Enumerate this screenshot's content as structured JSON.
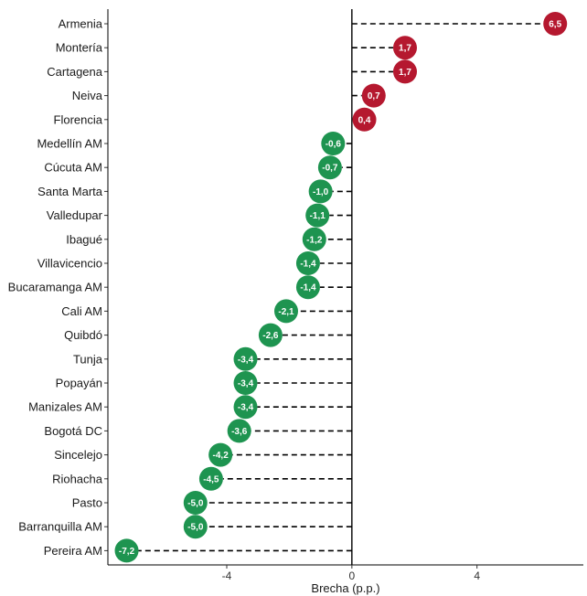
{
  "chart_data": {
    "type": "lollipop",
    "xlabel": "Brecha (p.p.)",
    "xlim": [
      -7.8,
      7.4
    ],
    "x_ticks": [
      -4,
      0,
      4
    ],
    "x_tick_labels": [
      "-4",
      "0",
      "4"
    ],
    "grid": false,
    "legend": "none",
    "colors": {
      "positive": "#b5182f",
      "negative": "#1e9450"
    },
    "categories": [
      "Armenia",
      "Montería",
      "Cartagena",
      "Neiva",
      "Florencia",
      "Medellín AM",
      "Cúcuta AM",
      "Santa Marta",
      "Valledupar",
      "Ibagué",
      "Villavicencio",
      "Bucaramanga AM",
      "Cali AM",
      "Quibdó",
      "Tunja",
      "Popayán",
      "Manizales AM",
      "Bogotá DC",
      "Sincelejo",
      "Riohacha",
      "Pasto",
      "Barranquilla AM",
      "Pereira AM"
    ],
    "values": [
      6.5,
      1.7,
      1.7,
      0.7,
      0.4,
      -0.6,
      -0.7,
      -1.0,
      -1.1,
      -1.2,
      -1.4,
      -1.4,
      -2.1,
      -2.6,
      -3.4,
      -3.4,
      -3.4,
      -3.6,
      -4.2,
      -4.5,
      -5.0,
      -5.0,
      -7.2
    ],
    "value_labels": [
      "6,5",
      "1,7",
      "1,7",
      "0,7",
      "0,4",
      "-0,6",
      "-0,7",
      "-1,0",
      "-1,1",
      "-1,2",
      "-1,4",
      "-1,4",
      "-2,1",
      "-2,6",
      "-3,4",
      "-3,4",
      "-3,4",
      "-3,6",
      "-4,2",
      "-4,5",
      "-5,0",
      "-5,0",
      "-7,2"
    ]
  }
}
